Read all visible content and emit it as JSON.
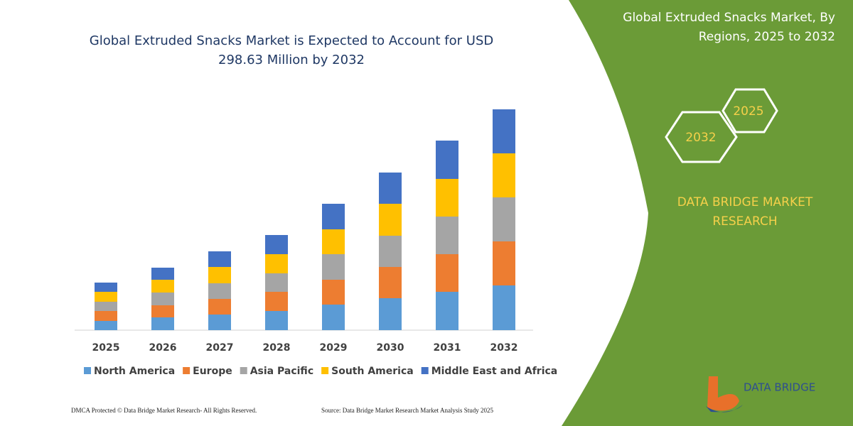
{
  "chart_data": {
    "type": "bar",
    "stacked": true,
    "title": "Global Extruded Snacks Market is Expected to Account for USD",
    "subtitle": "298.63 Million by 2032",
    "categories": [
      "2025",
      "2026",
      "2027",
      "2028",
      "2029",
      "2030",
      "2031",
      "2032"
    ],
    "series": [
      {
        "name": "North America",
        "color": "#5b9bd5",
        "values": [
          13,
          18,
          22,
          27,
          36,
          45,
          54,
          63
        ]
      },
      {
        "name": "Europe",
        "color": "#ed7d31",
        "values": [
          14,
          17,
          22,
          27,
          35,
          44,
          53,
          62
        ]
      },
      {
        "name": "Asia Pacific",
        "color": "#a5a5a5",
        "values": [
          13,
          18,
          22,
          26,
          36,
          44,
          53,
          62
        ]
      },
      {
        "name": "South America",
        "color": "#ffc000",
        "values": [
          14,
          18,
          23,
          27,
          35,
          45,
          53,
          62
        ]
      },
      {
        "name": "Middle East and Africa",
        "color": "#4472c4",
        "values": [
          13,
          17,
          22,
          27,
          36,
          44,
          54,
          62
        ]
      }
    ]
  },
  "panel": {
    "title_line1": "Global Extruded Snacks Market, By",
    "title_line2": "Regions, 2025 to 2032",
    "hex_top": "2025",
    "hex_left": "2032",
    "brand_line1": "DATA BRIDGE MARKET",
    "brand_line2": "RESEARCH",
    "logo": "DATA BRIDGE"
  },
  "footer": {
    "left": "DMCA Protected © Data Bridge Market Research- All Rights Reserved.",
    "right": "Source: Data Bridge Market Research Market Analysis Study 2025"
  }
}
